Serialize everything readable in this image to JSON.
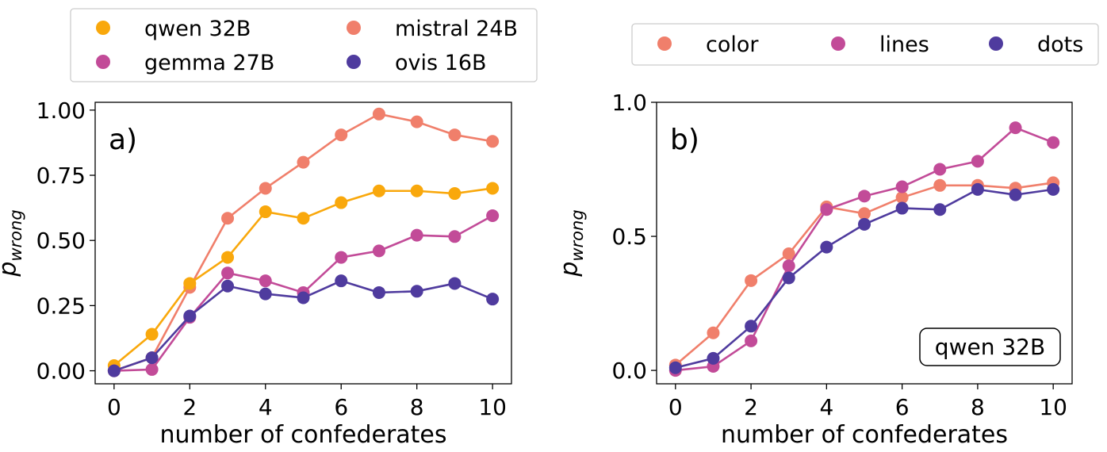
{
  "figure": {
    "xlabel": "number of confederates",
    "ylabel_main": "p",
    "ylabel_sub": "wrong"
  },
  "chart_data": [
    {
      "type": "line",
      "panel_label": "a)",
      "xlabel": "number of confederates",
      "ylabel": "p_wrong",
      "xlim": [
        -0.5,
        10.5
      ],
      "ylim": [
        -0.05,
        1.03
      ],
      "xticks": [
        0,
        2,
        4,
        6,
        8,
        10
      ],
      "xtick_labels": [
        "0",
        "2",
        "4",
        "6",
        "8",
        "10"
      ],
      "yticks": [
        0,
        0.25,
        0.5,
        0.75,
        1.0
      ],
      "ytick_labels": [
        "0.00",
        "0.25",
        "0.50",
        "0.75",
        "1.00"
      ],
      "legend_position": "above",
      "legend_columns": 2,
      "legend": [
        "qwen 32B",
        "mistral 24B",
        "gemma 27B",
        "ovis 16B"
      ],
      "x": [
        0,
        1,
        2,
        3,
        4,
        5,
        6,
        7,
        8,
        9,
        10
      ],
      "series": [
        {
          "name": "mistral 24B",
          "color": "#f07f6b",
          "values": [
            0.0,
            0.05,
            0.32,
            0.585,
            0.7,
            0.8,
            0.905,
            0.985,
            0.955,
            0.905,
            0.88
          ]
        },
        {
          "name": "qwen 32B",
          "color": "#f9a80c",
          "values": [
            0.02,
            0.14,
            0.335,
            0.435,
            0.61,
            0.585,
            0.645,
            0.69,
            0.69,
            0.68,
            0.7
          ]
        },
        {
          "name": "gemma 27B",
          "color": "#c24b98",
          "values": [
            0.0,
            0.005,
            0.205,
            0.375,
            0.345,
            0.3,
            0.435,
            0.46,
            0.52,
            0.515,
            0.595
          ]
        },
        {
          "name": "ovis 16B",
          "color": "#4f3b9e",
          "values": [
            0.0,
            0.05,
            0.21,
            0.325,
            0.295,
            0.28,
            0.345,
            0.3,
            0.305,
            0.335,
            0.275
          ]
        }
      ]
    },
    {
      "type": "line",
      "panel_label": "b)",
      "annotation": "qwen 32B",
      "xlabel": "number of confederates",
      "ylabel": "p_wrong",
      "xlim": [
        -0.5,
        10.5
      ],
      "ylim": [
        -0.05,
        1.0
      ],
      "xticks": [
        0,
        2,
        4,
        6,
        8,
        10
      ],
      "xtick_labels": [
        "0",
        "2",
        "4",
        "6",
        "8",
        "10"
      ],
      "yticks": [
        0,
        0.5,
        1.0
      ],
      "ytick_labels": [
        "0.0",
        "0.5",
        "1.0"
      ],
      "legend_position": "above",
      "legend_columns": 3,
      "legend": [
        "color",
        "lines",
        "dots"
      ],
      "x": [
        0,
        1,
        2,
        3,
        4,
        5,
        6,
        7,
        8,
        9,
        10
      ],
      "series": [
        {
          "name": "color",
          "color": "#f07f6b",
          "values": [
            0.02,
            0.14,
            0.335,
            0.435,
            0.61,
            0.585,
            0.645,
            0.69,
            0.69,
            0.68,
            0.7
          ]
        },
        {
          "name": "lines",
          "color": "#c24b98",
          "values": [
            0.0,
            0.015,
            0.11,
            0.39,
            0.6,
            0.65,
            0.685,
            0.75,
            0.78,
            0.905,
            0.85
          ]
        },
        {
          "name": "dots",
          "color": "#4f3b9e",
          "values": [
            0.01,
            0.045,
            0.165,
            0.345,
            0.46,
            0.545,
            0.605,
            0.6,
            0.675,
            0.655,
            0.675
          ]
        }
      ]
    }
  ]
}
